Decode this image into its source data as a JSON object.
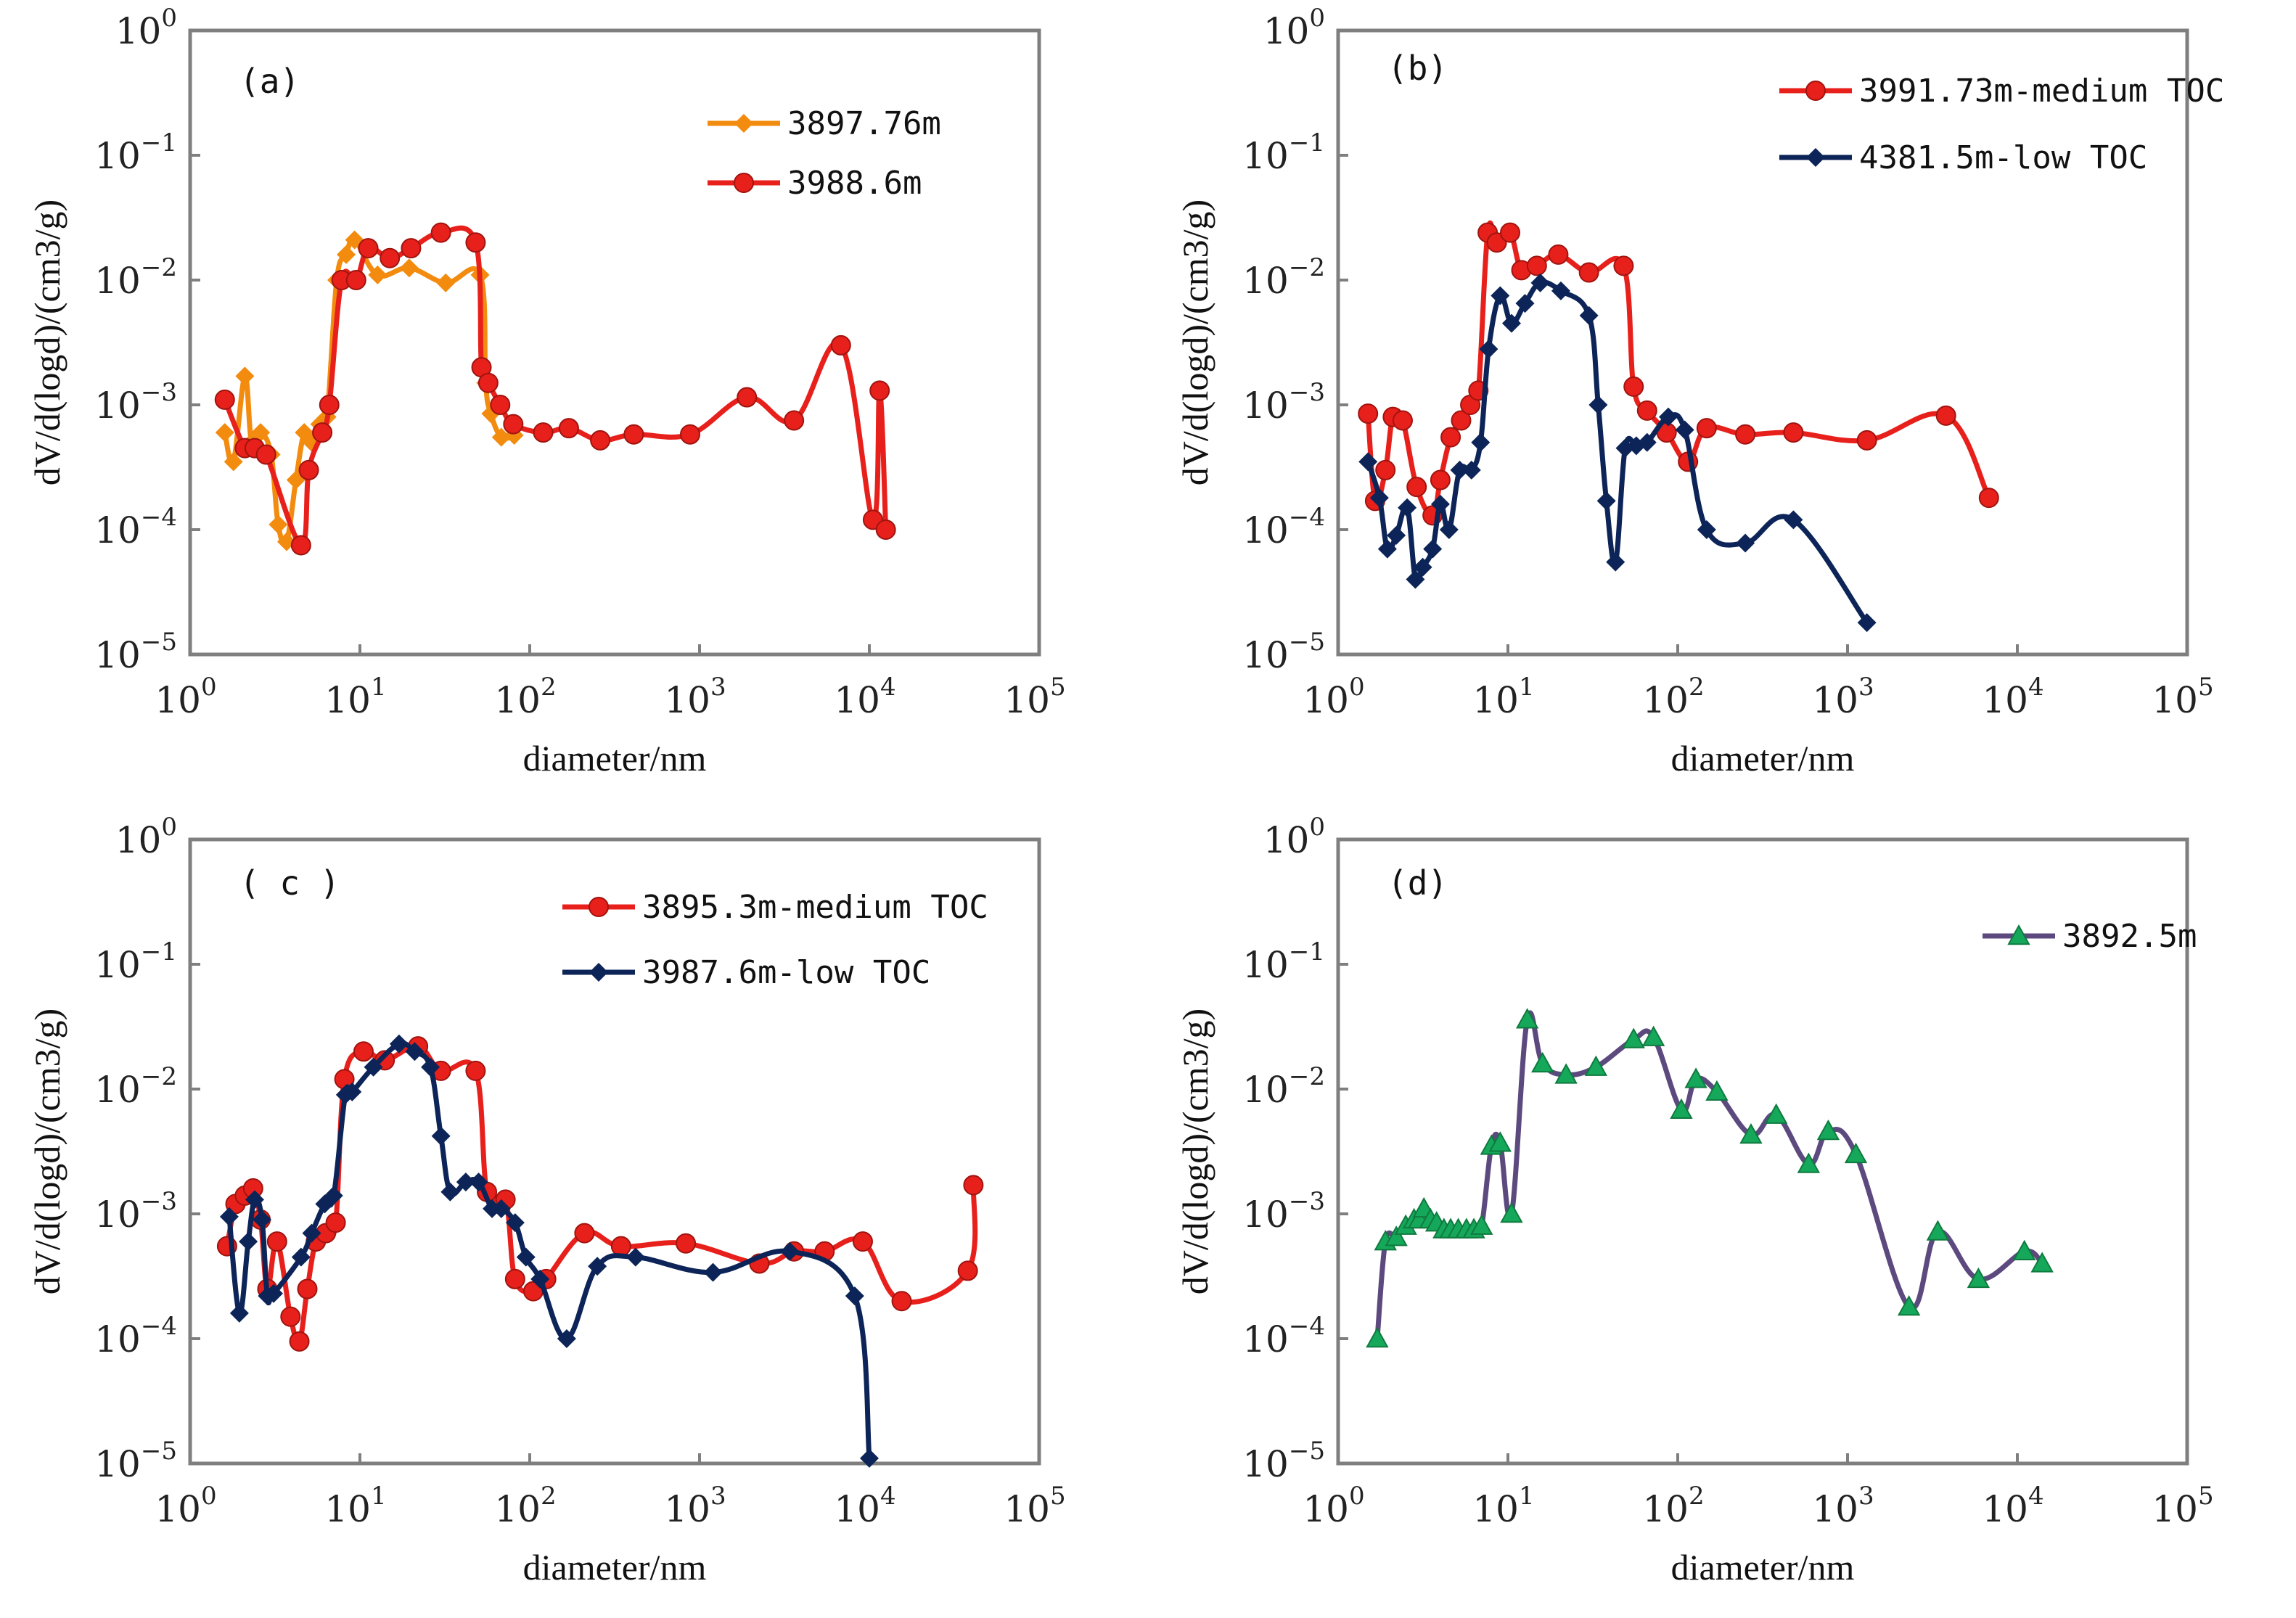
{
  "chart_data": [
    {
      "type": "line",
      "panel": "(a)",
      "xlabel": "diameter/nm",
      "ylabel": "dV/d(logd)/(cm3/g)",
      "xscale": "log",
      "yscale": "log",
      "xlim_exp": [
        0,
        5
      ],
      "ylim_exp": [
        -5,
        0
      ],
      "legend_position": "top-right",
      "series": [
        {
          "name": "3897.76m",
          "color": "#F28B0E",
          "marker": "diamond",
          "marker_color": "#F28B0E",
          "x": [
            1.6,
            1.8,
            2.1,
            2.3,
            2.6,
            3.0,
            3.3,
            3.7,
            4.2,
            4.7,
            5.2,
            5.8,
            6.4,
            7.3,
            8.3,
            9.3,
            12.7,
            19.5,
            32,
            51,
            55,
            59,
            68,
            81
          ],
          "y": [
            0.0006,
            0.00035,
            0.0017,
            0.0005,
            0.0006,
            0.0004,
            0.00011,
            8e-05,
            0.00025,
            0.0006,
            0.0005,
            0.0007,
            0.0008,
            0.01,
            0.016,
            0.021,
            0.011,
            0.0125,
            0.0095,
            0.011,
            0.0015,
            0.00085,
            0.00055,
            0.00057
          ]
        },
        {
          "name": "3988.6m",
          "color": "#E8201C",
          "marker": "circle",
          "marker_color": "#E8201C",
          "x": [
            1.6,
            2.1,
            2.4,
            2.8,
            4.5,
            5.0,
            6.0,
            6.6,
            7.8,
            9.5,
            11.2,
            15,
            20,
            30,
            48,
            52,
            57,
            67,
            80,
            120,
            170,
            260,
            410,
            880,
            1900,
            3600,
            6800,
            10500,
            11500,
            12500
          ],
          "y": [
            0.0011,
            0.00045,
            0.00045,
            0.0004,
            7.5e-05,
            0.0003,
            0.0006,
            0.001,
            0.01,
            0.01,
            0.018,
            0.015,
            0.018,
            0.024,
            0.02,
            0.002,
            0.0015,
            0.001,
            0.0007,
            0.0006,
            0.00065,
            0.00052,
            0.00058,
            0.00058,
            0.00115,
            0.00075,
            0.003,
            0.00012,
            0.0013,
            0.0001
          ]
        }
      ]
    },
    {
      "type": "line",
      "panel": "(b)",
      "xlabel": "diameter/nm",
      "ylabel": "dV/d(logd)/(cm3/g)",
      "xscale": "log",
      "yscale": "log",
      "xlim_exp": [
        0,
        5
      ],
      "ylim_exp": [
        -5,
        0
      ],
      "legend_position": "top-right",
      "series": [
        {
          "name": "3991.73m-medium TOC",
          "color": "#E8201C",
          "marker": "circle",
          "marker_color": "#E8201C",
          "x": [
            1.5,
            1.65,
            1.9,
            2.1,
            2.4,
            2.9,
            3.6,
            4.0,
            4.6,
            5.3,
            6.0,
            6.7,
            7.6,
            8.6,
            10.3,
            12,
            14.8,
            19.8,
            30,
            48,
            55,
            66,
            86,
            115,
            148,
            250,
            480,
            1300,
            3800,
            6800
          ],
          "y": [
            0.00085,
            0.00017,
            0.0003,
            0.0008,
            0.00075,
            0.00022,
            0.00013,
            0.00025,
            0.00055,
            0.00075,
            0.001,
            0.0013,
            0.024,
            0.02,
            0.024,
            0.012,
            0.013,
            0.016,
            0.0115,
            0.013,
            0.0014,
            0.0009,
            0.0006,
            0.00035,
            0.00065,
            0.00058,
            0.0006,
            0.00052,
            0.00082,
            0.00018
          ]
        },
        {
          "name": "4381.5m-low TOC",
          "color": "#0C2457",
          "marker": "diamond",
          "marker_color": "#0C2457",
          "x": [
            1.5,
            1.75,
            1.95,
            2.2,
            2.55,
            2.85,
            3.15,
            3.6,
            4.0,
            4.5,
            5.2,
            6.1,
            6.9,
            7.7,
            9.0,
            10.5,
            12.6,
            15.5,
            20.5,
            30,
            34,
            38,
            43,
            49,
            57,
            66,
            88,
            110,
            148,
            250,
            480,
            1300
          ],
          "y": [
            0.00035,
            0.00018,
            7e-05,
            9e-05,
            0.00015,
            4e-05,
            5e-05,
            7e-05,
            0.00016,
            0.0001,
            0.0003,
            0.0003,
            0.0005,
            0.0028,
            0.0075,
            0.0045,
            0.0065,
            0.0095,
            0.0082,
            0.0052,
            0.001,
            0.00017,
            5.5e-05,
            0.00045,
            0.00047,
            0.0005,
            0.0008,
            0.00063,
            0.0001,
            7.8e-05,
            0.00012,
            1.8e-05
          ]
        }
      ]
    },
    {
      "type": "line",
      "panel": "( c )",
      "xlabel": "diameter/nm",
      "ylabel": "dV/d(logd)/(cm3/g)",
      "xscale": "log",
      "yscale": "log",
      "xlim_exp": [
        0,
        5
      ],
      "ylim_exp": [
        -5,
        0
      ],
      "legend_position": "top-right",
      "series": [
        {
          "name": "3895.3m-medium TOC",
          "color": "#E8201C",
          "marker": "circle",
          "marker_color": "#E8201C",
          "x": [
            1.65,
            1.85,
            2.1,
            2.35,
            2.6,
            2.85,
            3.25,
            3.9,
            4.4,
            4.9,
            5.5,
            6.3,
            7.2,
            8.1,
            10.5,
            14,
            22,
            30,
            48,
            56,
            72,
            82,
            105,
            125,
            210,
            345,
            830,
            2250,
            3600,
            5450,
            9150,
            15500,
            38000,
            41000
          ],
          "y": [
            0.00055,
            0.0012,
            0.0014,
            0.0016,
            0.0009,
            0.00025,
            0.0006,
            0.00015,
            9.5e-05,
            0.00025,
            0.0006,
            0.0007,
            0.00085,
            0.012,
            0.02,
            0.017,
            0.022,
            0.014,
            0.014,
            0.0015,
            0.0013,
            0.0003,
            0.00024,
            0.0003,
            0.0007,
            0.00055,
            0.00058,
            0.0004,
            0.0005,
            0.0005,
            0.0006,
            0.0002,
            0.00035,
            0.0017
          ]
        },
        {
          "name": "3987.6m-low TOC",
          "color": "#0C2457",
          "marker": "diamond",
          "marker_color": "#0C2457",
          "x": [
            1.7,
            1.95,
            2.2,
            2.4,
            2.65,
            2.85,
            3.1,
            4.5,
            5.2,
            6.2,
            7.0,
            8.2,
            9.0,
            12,
            17,
            21,
            26,
            30,
            34,
            42,
            50,
            60,
            68,
            82,
            95,
            115,
            165,
            250,
            420,
            1200,
            3400,
            8200,
            10000
          ],
          "y": [
            0.00095,
            0.00016,
            0.0006,
            0.0013,
            0.0009,
            0.00022,
            0.00023,
            0.00045,
            0.0007,
            0.0012,
            0.0014,
            0.009,
            0.0095,
            0.015,
            0.023,
            0.02,
            0.015,
            0.0042,
            0.0015,
            0.0018,
            0.0018,
            0.0011,
            0.0011,
            0.00085,
            0.00045,
            0.0003,
            0.0001,
            0.00038,
            0.00045,
            0.00034,
            0.0005,
            0.00022,
            1.1e-05
          ]
        }
      ]
    },
    {
      "type": "line",
      "panel": "(d)",
      "xlabel": "diameter/nm",
      "ylabel": "dV/d(logd)/(cm3/g)",
      "xscale": "log",
      "yscale": "log",
      "xlim_exp": [
        0,
        5
      ],
      "ylim_exp": [
        -5,
        0
      ],
      "legend_position": "top-right",
      "series": [
        {
          "name": "3892.5m",
          "color": "#5C4A7F",
          "marker": "triangle",
          "marker_color": "#16A85A",
          "x": [
            1.7,
            1.9,
            2.2,
            2.5,
            2.8,
            3.0,
            3.2,
            3.5,
            3.8,
            4.2,
            4.6,
            5.1,
            5.7,
            6.3,
            7.0,
            8.0,
            9.0,
            10.5,
            13,
            16,
            22,
            33,
            55,
            72,
            105,
            128,
            170,
            270,
            380,
            590,
            770,
            1120,
            2300,
            3400,
            5900,
            11000,
            14000
          ],
          "y": [
            0.0001,
            0.0006,
            0.00065,
            0.0008,
            0.0009,
            0.0009,
            0.0011,
            0.0009,
            0.00085,
            0.00075,
            0.00075,
            0.00075,
            0.00075,
            0.00075,
            0.0008,
            0.0035,
            0.0037,
            0.001,
            0.036,
            0.016,
            0.013,
            0.015,
            0.025,
            0.026,
            0.0068,
            0.012,
            0.0095,
            0.0043,
            0.0062,
            0.0025,
            0.0046,
            0.003,
            0.00018,
            0.00072,
            0.0003,
            0.0005,
            0.0004
          ]
        }
      ]
    }
  ]
}
